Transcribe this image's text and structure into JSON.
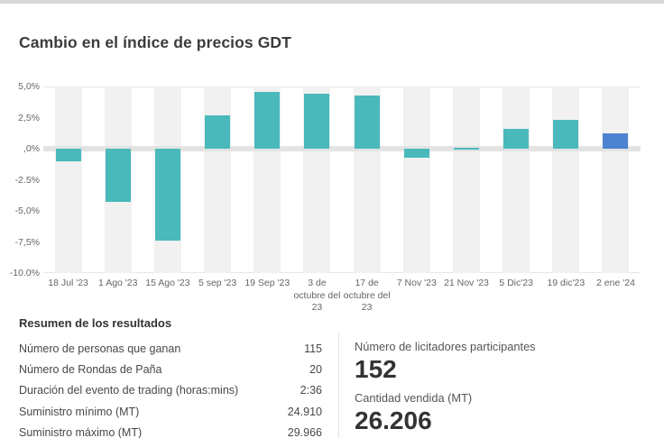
{
  "title": "Cambio en el índice de precios GDT",
  "colors": {
    "bar_default": "#4ab9bb",
    "bar_latest": "#4d83d0",
    "column_band": "#f1f1f1",
    "zero_band": "#e3e3e3",
    "top_strip": "#d8d8d8",
    "axis_text": "#666666"
  },
  "chart_data": {
    "type": "bar",
    "title": "Cambio en el índice de precios GDT",
    "categories": [
      "18 Jul '23",
      "1 Ago '23",
      "15 Ago '23",
      "5 sep '23",
      "19 Sep '23",
      "3 de\noctubre del\n23",
      "17 de\noctubre del\n23",
      "7 Nov '23",
      "21 Nov '23",
      "5 Dic'23",
      "19 dic'23",
      "2 ene '24"
    ],
    "values": [
      -1.0,
      -4.3,
      -7.4,
      2.7,
      4.6,
      4.4,
      4.3,
      -0.7,
      0.0,
      1.6,
      2.3,
      1.2
    ],
    "unit": "%",
    "ylim": [
      -10,
      5
    ],
    "ytick_values": [
      5,
      2.5,
      0,
      -2.5,
      -5,
      -7.5,
      -10
    ],
    "ytick_labels": [
      "5,0%",
      "2,5%",
      ",0%",
      "-2.5%",
      "-5,0%",
      "-7,5%",
      "-10.0%"
    ],
    "grid": "top-bottom-and-zero-band",
    "legend": "none",
    "highlight_last": true
  },
  "summary": {
    "heading": "Resumen de los resultados",
    "rows": [
      {
        "label": "Número de personas que ganan",
        "value": "115"
      },
      {
        "label": "Número de Rondas de Paña",
        "value": "20"
      },
      {
        "label": "Duración del evento de trading (horas:mins)",
        "value": "2:36"
      },
      {
        "label": "Suministro mínimo (MT)",
        "value": "24.910"
      },
      {
        "label": "Suministro máximo (MT)",
        "value": "29.966"
      }
    ],
    "kpis": [
      {
        "label": "Número de licitadores participantes",
        "value": "152"
      },
      {
        "label": "Cantidad vendida (MT)",
        "value": "26.206"
      }
    ]
  }
}
